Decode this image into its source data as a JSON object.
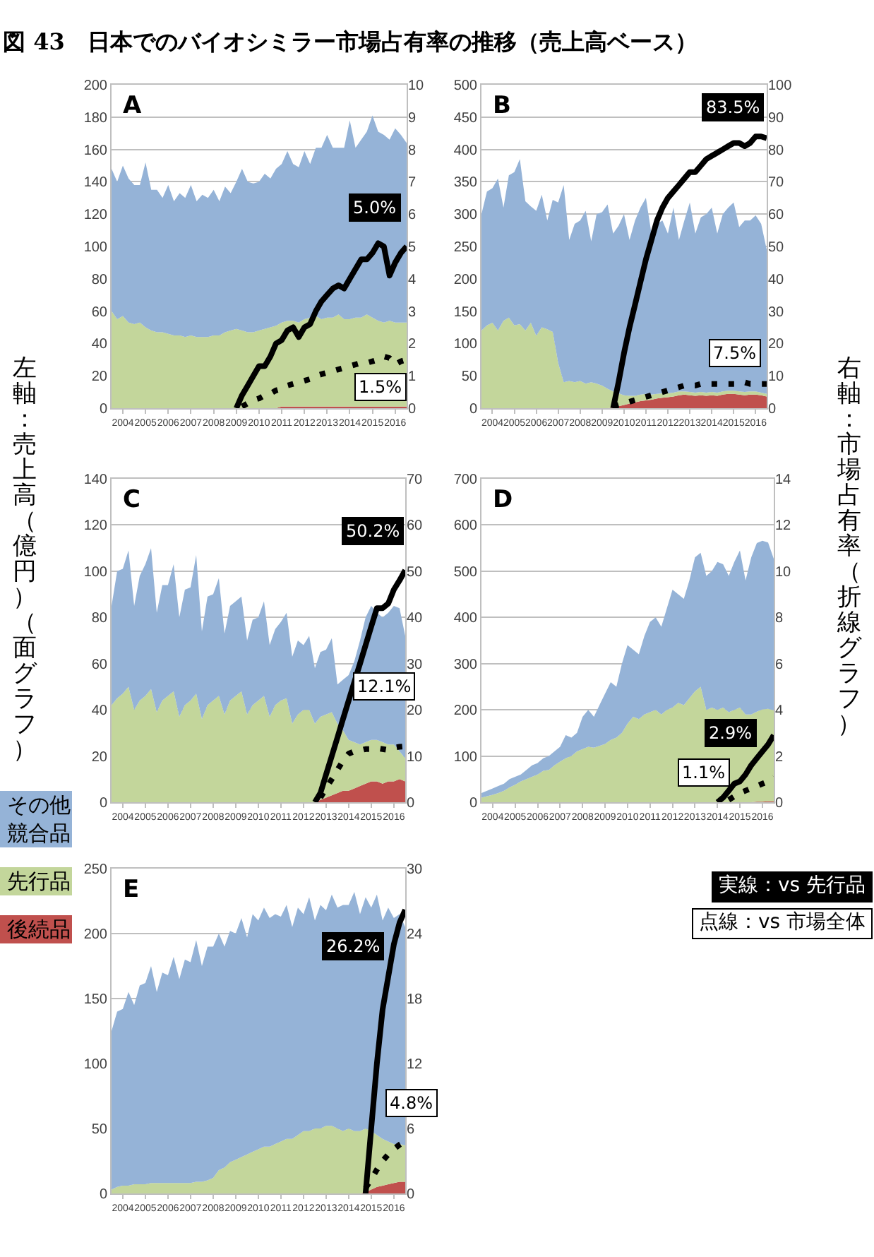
{
  "chart_data": [
    {
      "type": "area",
      "title": "図 43　日本でのバイオシミラー市場占有率の推移（売上高ベース）",
      "ylabel": "左軸：売上高（億円）（面グラフ）",
      "y2label": "右軸：市場占有率（折線グラフ）",
      "stacked": true,
      "grid": "y",
      "legend": "left",
      "annotations": [
        "A",
        "5.0%",
        "1.5%"
      ],
      "x": [
        "2004-01",
        "2004-04",
        "2004-07",
        "2004-10",
        "2005-01",
        "2005-04",
        "2005-07",
        "2005-10",
        "2006-01",
        "2006-04",
        "2006-07",
        "2006-10",
        "2007-01",
        "2007-04",
        "2007-07",
        "2007-10",
        "2008-01",
        "2008-04",
        "2008-07",
        "2008-10",
        "2009-01",
        "2009-04",
        "2009-07",
        "2009-10",
        "2010-01",
        "2010-04",
        "2010-07",
        "2010-10",
        "2011-01",
        "2011-04",
        "2011-07",
        "2011-10",
        "2012-01",
        "2012-04",
        "2012-07",
        "2012-10",
        "2013-01",
        "2013-04",
        "2013-07",
        "2013-10",
        "2014-01",
        "2014-04",
        "2014-07",
        "2014-10",
        "2015-01",
        "2015-04",
        "2015-07",
        "2015-10",
        "2016-01",
        "2016-04",
        "2016-07",
        "2016-10",
        "2017-01"
      ],
      "xlim": [
        "2004-01",
        "2017-01"
      ],
      "xticks": [
        {
          "value": "2004-07",
          "label": "2004"
        },
        {
          "value": "2005-07",
          "label": "2005"
        },
        {
          "value": "2006-07",
          "label": "2006"
        },
        {
          "value": "2007-07",
          "label": "2007"
        },
        {
          "value": "2008-07",
          "label": "2008"
        },
        {
          "value": "2009-07",
          "label": "2009"
        },
        {
          "value": "2010-07",
          "label": "2010"
        },
        {
          "value": "2011-07",
          "label": "2011"
        },
        {
          "value": "2012-07",
          "label": "2012"
        },
        {
          "value": "2013-07",
          "label": "2013"
        },
        {
          "value": "2014-07",
          "label": "2014"
        },
        {
          "value": "2015-07",
          "label": "2015"
        },
        {
          "value": "2016-07",
          "label": "2016"
        }
      ],
      "ylim": [
        0,
        200
      ],
      "yticks": [
        0,
        20,
        40,
        60,
        80,
        100,
        120,
        140,
        160,
        180,
        200
      ],
      "y2lim": [
        0,
        10
      ],
      "y2ticks": [
        0,
        1,
        2,
        3,
        4,
        5,
        6,
        7,
        8,
        9,
        10
      ],
      "series": [
        {
          "name": "後続品",
          "color": "#c0504d",
          "values": [
            0,
            0,
            0,
            0,
            0,
            0,
            0,
            0,
            0,
            0,
            0,
            0,
            0,
            0,
            0,
            0,
            0,
            0,
            0,
            0,
            0,
            0,
            0,
            0,
            0,
            0,
            0,
            0,
            0,
            0,
            1,
            1,
            1,
            1,
            1,
            1,
            1,
            1,
            1,
            1,
            1,
            1,
            1,
            1,
            1,
            1,
            1,
            1,
            1,
            1,
            1,
            1,
            1
          ]
        },
        {
          "name": "先行品",
          "color": "#c3d69b",
          "values": [
            60,
            55,
            57,
            53,
            52,
            53,
            50,
            48,
            47,
            47,
            46,
            45,
            45,
            44,
            45,
            44,
            44,
            44,
            45,
            45,
            47,
            48,
            49,
            48,
            47,
            47,
            48,
            49,
            50,
            51,
            52,
            53,
            53,
            52,
            54,
            55,
            56,
            54,
            55,
            55,
            57,
            54,
            54,
            55,
            55,
            57,
            55,
            53,
            52,
            53,
            52,
            52,
            52
          ]
        },
        {
          "name": "その他競合品",
          "color": "#95b3d7",
          "values": [
            88,
            85,
            93,
            89,
            86,
            85,
            102,
            87,
            88,
            83,
            92,
            83,
            88,
            86,
            93,
            84,
            88,
            86,
            90,
            83,
            90,
            85,
            91,
            100,
            93,
            92,
            92,
            96,
            92,
            97,
            98,
            105,
            97,
            96,
            104,
            95,
            104,
            106,
            113,
            105,
            103,
            106,
            123,
            105,
            110,
            113,
            125,
            117,
            116,
            112,
            120,
            116,
            111
          ]
        },
        {
          "name": "実線：vs 先行品",
          "type": "line",
          "axis": "y2",
          "line_style": "solid",
          "color": "#000000",
          "values": [
            null,
            null,
            null,
            null,
            null,
            null,
            null,
            null,
            null,
            null,
            null,
            null,
            null,
            null,
            null,
            null,
            null,
            null,
            null,
            null,
            null,
            null,
            0,
            0.4,
            0.7,
            1.0,
            1.3,
            1.3,
            1.6,
            2.0,
            2.1,
            2.4,
            2.5,
            2.2,
            2.5,
            2.6,
            3.0,
            3.3,
            3.5,
            3.7,
            3.8,
            3.7,
            4.0,
            4.3,
            4.6,
            4.6,
            4.8,
            5.1,
            5.0,
            4.1,
            4.5,
            4.8,
            5.0
          ]
        },
        {
          "name": "点線：vs 市場全体",
          "type": "line",
          "axis": "y2",
          "line_style": "dotted",
          "color": "#000000",
          "values": [
            null,
            null,
            null,
            null,
            null,
            null,
            null,
            null,
            null,
            null,
            null,
            null,
            null,
            null,
            null,
            null,
            null,
            null,
            null,
            null,
            null,
            null,
            null,
            0.05,
            0.15,
            0.25,
            0.3,
            0.4,
            0.45,
            0.55,
            0.6,
            0.7,
            0.75,
            0.8,
            0.85,
            0.9,
            1.0,
            1.05,
            1.1,
            1.15,
            1.2,
            1.25,
            1.3,
            1.35,
            1.4,
            1.4,
            1.45,
            1.5,
            1.6,
            1.55,
            1.35,
            1.45,
            1.5
          ]
        }
      ]
    },
    {
      "type": "area",
      "stacked": true,
      "grid": "y",
      "annotations": [
        "B",
        "83.5%",
        "7.5%"
      ],
      "x": [
        "2004-01",
        "2004-04",
        "2004-07",
        "2004-10",
        "2005-01",
        "2005-04",
        "2005-07",
        "2005-10",
        "2006-01",
        "2006-04",
        "2006-07",
        "2006-10",
        "2007-01",
        "2007-04",
        "2007-07",
        "2007-10",
        "2008-01",
        "2008-04",
        "2008-07",
        "2008-10",
        "2009-01",
        "2009-04",
        "2009-07",
        "2009-10",
        "2010-01",
        "2010-04",
        "2010-07",
        "2010-10",
        "2011-01",
        "2011-04",
        "2011-07",
        "2011-10",
        "2012-01",
        "2012-04",
        "2012-07",
        "2012-10",
        "2013-01",
        "2013-04",
        "2013-07",
        "2013-10",
        "2014-01",
        "2014-04",
        "2014-07",
        "2014-10",
        "2015-01",
        "2015-04",
        "2015-07",
        "2015-10",
        "2016-01",
        "2016-04",
        "2016-07",
        "2016-10",
        "2017-01"
      ],
      "xlim": [
        "2004-01",
        "2017-01"
      ],
      "xticks": [
        {
          "value": "2004-07",
          "label": "2004"
        },
        {
          "value": "2005-07",
          "label": "2005"
        },
        {
          "value": "2006-07",
          "label": "2006"
        },
        {
          "value": "2007-07",
          "label": "2007"
        },
        {
          "value": "2008-07",
          "label": "2008"
        },
        {
          "value": "2009-07",
          "label": "2009"
        },
        {
          "value": "2010-07",
          "label": "2010"
        },
        {
          "value": "2011-07",
          "label": "2011"
        },
        {
          "value": "2012-07",
          "label": "2012"
        },
        {
          "value": "2013-07",
          "label": "2013"
        },
        {
          "value": "2014-07",
          "label": "2014"
        },
        {
          "value": "2015-07",
          "label": "2015"
        },
        {
          "value": "2016-07",
          "label": "2016"
        }
      ],
      "ylim": [
        0,
        500
      ],
      "yticks": [
        0,
        50,
        100,
        150,
        200,
        250,
        300,
        350,
        400,
        450,
        500
      ],
      "y2lim": [
        0,
        100
      ],
      "y2ticks": [
        0,
        10,
        20,
        30,
        40,
        50,
        60,
        70,
        80,
        90,
        100
      ],
      "series": [
        {
          "color": "#c0504d",
          "values": [
            0,
            0,
            0,
            0,
            0,
            0,
            0,
            0,
            0,
            0,
            0,
            0,
            0,
            0,
            0,
            0,
            0,
            0,
            0,
            0,
            0,
            0,
            0,
            0,
            1,
            3,
            5,
            7,
            9,
            11,
            12,
            13,
            15,
            16,
            17,
            18,
            20,
            21,
            20,
            19,
            20,
            19,
            20,
            19,
            21,
            22,
            22,
            21,
            20,
            21,
            21,
            20,
            18
          ]
        },
        {
          "color": "#c3d69b",
          "values": [
            120,
            128,
            132,
            120,
            135,
            140,
            128,
            130,
            120,
            132,
            112,
            125,
            122,
            118,
            70,
            40,
            42,
            40,
            42,
            38,
            40,
            38,
            35,
            30,
            25,
            20,
            15,
            12,
            10,
            10,
            10,
            8,
            7,
            7,
            6,
            6,
            6,
            5,
            5,
            5,
            5,
            5,
            5,
            5,
            5,
            5,
            5,
            5,
            5,
            5,
            5,
            4,
            4
          ]
        },
        {
          "color": "#95b3d7",
          "values": [
            180,
            207,
            208,
            235,
            175,
            220,
            237,
            255,
            200,
            180,
            193,
            205,
            168,
            204,
            248,
            305,
            218,
            245,
            248,
            267,
            218,
            262,
            268,
            285,
            244,
            259,
            280,
            241,
            271,
            289,
            303,
            249,
            263,
            267,
            247,
            286,
            234,
            264,
            293,
            246,
            270,
            276,
            285,
            246,
            274,
            283,
            291,
            254,
            265,
            264,
            272,
            261,
            223
          ]
        },
        {
          "type": "line",
          "axis": "y2",
          "line_style": "solid",
          "color": "#000000",
          "values": [
            null,
            null,
            null,
            null,
            null,
            null,
            null,
            null,
            null,
            null,
            null,
            null,
            null,
            null,
            null,
            null,
            null,
            null,
            null,
            null,
            null,
            null,
            null,
            null,
            0,
            8,
            17,
            25,
            32,
            39,
            46,
            52,
            58,
            62,
            65,
            67,
            69,
            71,
            73,
            73,
            75,
            77,
            78,
            79,
            80,
            81,
            82,
            82,
            81,
            82,
            84,
            84,
            83.5
          ]
        },
        {
          "type": "line",
          "axis": "y2",
          "line_style": "dotted",
          "color": "#000000",
          "values": [
            null,
            null,
            null,
            null,
            null,
            null,
            null,
            null,
            null,
            null,
            null,
            null,
            null,
            null,
            null,
            null,
            null,
            null,
            null,
            null,
            null,
            null,
            null,
            null,
            0.5,
            1,
            1.5,
            2,
            2.5,
            3,
            3.5,
            4,
            4.5,
            5,
            5.5,
            6,
            6.5,
            7,
            7,
            7,
            7.5,
            7.5,
            7.5,
            7.5,
            7.5,
            7.5,
            7.5,
            7.5,
            8,
            7.5,
            7.5,
            7.5,
            7.5
          ]
        }
      ]
    },
    {
      "type": "area",
      "stacked": true,
      "grid": "y",
      "annotations": [
        "C",
        "50.2%",
        "12.1%"
      ],
      "x": [
        "2004-01",
        "2004-04",
        "2004-07",
        "2004-10",
        "2005-01",
        "2005-04",
        "2005-07",
        "2005-10",
        "2006-01",
        "2006-04",
        "2006-07",
        "2006-10",
        "2007-01",
        "2007-04",
        "2007-07",
        "2007-10",
        "2008-01",
        "2008-04",
        "2008-07",
        "2008-10",
        "2009-01",
        "2009-04",
        "2009-07",
        "2009-10",
        "2010-01",
        "2010-04",
        "2010-07",
        "2010-10",
        "2011-01",
        "2011-04",
        "2011-07",
        "2011-10",
        "2012-01",
        "2012-04",
        "2012-07",
        "2012-10",
        "2013-01",
        "2013-04",
        "2013-07",
        "2013-10",
        "2014-01",
        "2014-04",
        "2014-07",
        "2014-10",
        "2015-01",
        "2015-04",
        "2015-07",
        "2015-10",
        "2016-01",
        "2016-04",
        "2016-07",
        "2016-10",
        "2017-01"
      ],
      "xlim": [
        "2004-01",
        "2017-01"
      ],
      "xticks": [
        {
          "value": "2004-07",
          "label": "2004"
        },
        {
          "value": "2005-07",
          "label": "2005"
        },
        {
          "value": "2006-07",
          "label": "2006"
        },
        {
          "value": "2007-07",
          "label": "2007"
        },
        {
          "value": "2008-07",
          "label": "2008"
        },
        {
          "value": "2009-07",
          "label": "2009"
        },
        {
          "value": "2010-07",
          "label": "2010"
        },
        {
          "value": "2011-07",
          "label": "2011"
        },
        {
          "value": "2012-07",
          "label": "2012"
        },
        {
          "value": "2013-07",
          "label": "2013"
        },
        {
          "value": "2014-07",
          "label": "2014"
        },
        {
          "value": "2015-07",
          "label": "2015"
        },
        {
          "value": "2016-07",
          "label": "2016"
        }
      ],
      "ylim": [
        0,
        140
      ],
      "yticks": [
        0,
        20,
        40,
        60,
        80,
        100,
        120,
        140
      ],
      "y2lim": [
        0,
        70
      ],
      "y2ticks": [
        0,
        10,
        20,
        30,
        40,
        50,
        60,
        70
      ],
      "series": [
        {
          "color": "#c0504d",
          "values": [
            0,
            0,
            0,
            0,
            0,
            0,
            0,
            0,
            0,
            0,
            0,
            0,
            0,
            0,
            0,
            0,
            0,
            0,
            0,
            0,
            0,
            0,
            0,
            0,
            0,
            0,
            0,
            0,
            0,
            0,
            0,
            0,
            0,
            0,
            0,
            0,
            0,
            1,
            2,
            3,
            4,
            5,
            5,
            6,
            7,
            8,
            9,
            9,
            8,
            9,
            9,
            10,
            9
          ]
        },
        {
          "color": "#c3d69b",
          "values": [
            42,
            45,
            47,
            50,
            40,
            44,
            46,
            49,
            39,
            44,
            46,
            48,
            37,
            42,
            44,
            47,
            36,
            42,
            44,
            46,
            38,
            44,
            46,
            48,
            38,
            42,
            44,
            46,
            37,
            42,
            44,
            45,
            34,
            38,
            40,
            40,
            34,
            36,
            36,
            36,
            30,
            26,
            22,
            20,
            18,
            18,
            18,
            18,
            18,
            16,
            16,
            12,
            10
          ]
        },
        {
          "color": "#95b3d7",
          "values": [
            43,
            55,
            54,
            59,
            45,
            54,
            57,
            61,
            43,
            50,
            48,
            55,
            43,
            50,
            49,
            60,
            38,
            47,
            46,
            51,
            35,
            41,
            41,
            41,
            32,
            37,
            36,
            41,
            31,
            33,
            34,
            37,
            29,
            32,
            28,
            32,
            24,
            28,
            28,
            32,
            17,
            22,
            28,
            35,
            45,
            54,
            58,
            55,
            54,
            57,
            60,
            62,
            53
          ]
        },
        {
          "type": "line",
          "axis": "y2",
          "line_style": "solid",
          "color": "#000000",
          "values": [
            null,
            null,
            null,
            null,
            null,
            null,
            null,
            null,
            null,
            null,
            null,
            null,
            null,
            null,
            null,
            null,
            null,
            null,
            null,
            null,
            null,
            null,
            null,
            null,
            null,
            null,
            null,
            null,
            null,
            null,
            null,
            null,
            null,
            null,
            null,
            null,
            0,
            2,
            6,
            10,
            14,
            18,
            22,
            26,
            30,
            34,
            38,
            42,
            42,
            43,
            46,
            48,
            50.2
          ]
        },
        {
          "type": "line",
          "axis": "y2",
          "line_style": "dotted",
          "color": "#000000",
          "values": [
            null,
            null,
            null,
            null,
            null,
            null,
            null,
            null,
            null,
            null,
            null,
            null,
            null,
            null,
            null,
            null,
            null,
            null,
            null,
            null,
            null,
            null,
            null,
            null,
            null,
            null,
            null,
            null,
            null,
            null,
            null,
            null,
            null,
            null,
            null,
            null,
            null,
            1,
            3,
            5,
            7,
            9,
            10.5,
            11,
            11.2,
            11.5,
            11.5,
            11.7,
            11.5,
            11.3,
            11.8,
            12,
            12.1
          ]
        }
      ]
    },
    {
      "type": "area",
      "stacked": true,
      "grid": "y",
      "annotations": [
        "D",
        "2.9%",
        "1.1%"
      ],
      "x": [
        "2004-01",
        "2004-04",
        "2004-07",
        "2004-10",
        "2005-01",
        "2005-04",
        "2005-07",
        "2005-10",
        "2006-01",
        "2006-04",
        "2006-07",
        "2006-10",
        "2007-01",
        "2007-04",
        "2007-07",
        "2007-10",
        "2008-01",
        "2008-04",
        "2008-07",
        "2008-10",
        "2009-01",
        "2009-04",
        "2009-07",
        "2009-10",
        "2010-01",
        "2010-04",
        "2010-07",
        "2010-10",
        "2011-01",
        "2011-04",
        "2011-07",
        "2011-10",
        "2012-01",
        "2012-04",
        "2012-07",
        "2012-10",
        "2013-01",
        "2013-04",
        "2013-07",
        "2013-10",
        "2014-01",
        "2014-04",
        "2014-07",
        "2014-10",
        "2015-01",
        "2015-04",
        "2015-07",
        "2015-10",
        "2016-01",
        "2016-04",
        "2016-07",
        "2016-10",
        "2017-01"
      ],
      "xlim": [
        "2004-01",
        "2017-01"
      ],
      "xticks": [
        {
          "value": "2004-07",
          "label": "2004"
        },
        {
          "value": "2005-07",
          "label": "2005"
        },
        {
          "value": "2006-07",
          "label": "2006"
        },
        {
          "value": "2007-07",
          "label": "2007"
        },
        {
          "value": "2008-07",
          "label": "2008"
        },
        {
          "value": "2009-07",
          "label": "2009"
        },
        {
          "value": "2010-07",
          "label": "2010"
        },
        {
          "value": "2011-07",
          "label": "2011"
        },
        {
          "value": "2012-07",
          "label": "2012"
        },
        {
          "value": "2013-07",
          "label": "2013"
        },
        {
          "value": "2014-07",
          "label": "2014"
        },
        {
          "value": "2015-07",
          "label": "2015"
        },
        {
          "value": "2016-07",
          "label": "2016"
        }
      ],
      "ylim": [
        0,
        700
      ],
      "yticks": [
        0,
        100,
        200,
        300,
        400,
        500,
        600,
        700
      ],
      "y2lim": [
        0,
        14
      ],
      "y2ticks": [
        0,
        2,
        4,
        6,
        8,
        10,
        12,
        14
      ],
      "series": [
        {
          "color": "#c0504d",
          "values": [
            0,
            0,
            0,
            0,
            0,
            0,
            0,
            0,
            0,
            0,
            0,
            0,
            0,
            0,
            0,
            0,
            0,
            0,
            0,
            0,
            0,
            0,
            0,
            0,
            0,
            0,
            0,
            0,
            0,
            0,
            0,
            0,
            0,
            0,
            0,
            0,
            0,
            0,
            0,
            0,
            0,
            0,
            0,
            0,
            0,
            0,
            0,
            0,
            0,
            1,
            1,
            2,
            2
          ]
        },
        {
          "color": "#c3d69b",
          "values": [
            10,
            13,
            16,
            20,
            25,
            32,
            38,
            45,
            50,
            55,
            60,
            68,
            70,
            80,
            88,
            95,
            100,
            110,
            115,
            120,
            118,
            122,
            126,
            135,
            140,
            150,
            170,
            185,
            180,
            190,
            195,
            200,
            190,
            200,
            205,
            215,
            210,
            225,
            240,
            250,
            200,
            205,
            200,
            205,
            195,
            200,
            205,
            190,
            190,
            195,
            200,
            200,
            197
          ]
        },
        {
          "color": "#95b3d7",
          "values": [
            10,
            12,
            14,
            15,
            15,
            18,
            17,
            15,
            20,
            25,
            25,
            27,
            30,
            30,
            32,
            50,
            40,
            40,
            70,
            80,
            67,
            88,
            109,
            125,
            110,
            150,
            170,
            145,
            140,
            170,
            195,
            200,
            190,
            220,
            255,
            235,
            230,
            255,
            290,
            290,
            290,
            295,
            320,
            310,
            295,
            320,
            340,
            290,
            340,
            365,
            365,
            360,
            328
          ]
        },
        {
          "type": "line",
          "axis": "y2",
          "line_style": "solid",
          "color": "#000000",
          "values": [
            null,
            null,
            null,
            null,
            null,
            null,
            null,
            null,
            null,
            null,
            null,
            null,
            null,
            null,
            null,
            null,
            null,
            null,
            null,
            null,
            null,
            null,
            null,
            null,
            null,
            null,
            null,
            null,
            null,
            null,
            null,
            null,
            null,
            null,
            null,
            null,
            null,
            null,
            null,
            null,
            null,
            null,
            0,
            0.2,
            0.5,
            0.8,
            0.9,
            1.2,
            1.6,
            1.9,
            2.2,
            2.5,
            2.9
          ]
        },
        {
          "type": "line",
          "axis": "y2",
          "line_style": "dotted",
          "color": "#000000",
          "values": [
            null,
            null,
            null,
            null,
            null,
            null,
            null,
            null,
            null,
            null,
            null,
            null,
            null,
            null,
            null,
            null,
            null,
            null,
            null,
            null,
            null,
            null,
            null,
            null,
            null,
            null,
            null,
            null,
            null,
            null,
            null,
            null,
            null,
            null,
            null,
            null,
            null,
            null,
            null,
            null,
            null,
            null,
            null,
            null,
            0.1,
            0.25,
            0.4,
            0.5,
            0.6,
            0.7,
            0.8,
            0.9,
            1.1
          ]
        }
      ]
    },
    {
      "type": "area",
      "stacked": true,
      "grid": "y",
      "annotations": [
        "E",
        "26.2%",
        "4.8%"
      ],
      "x": [
        "2004-01",
        "2004-04",
        "2004-07",
        "2004-10",
        "2005-01",
        "2005-04",
        "2005-07",
        "2005-10",
        "2006-01",
        "2006-04",
        "2006-07",
        "2006-10",
        "2007-01",
        "2007-04",
        "2007-07",
        "2007-10",
        "2008-01",
        "2008-04",
        "2008-07",
        "2008-10",
        "2009-01",
        "2009-04",
        "2009-07",
        "2009-10",
        "2010-01",
        "2010-04",
        "2010-07",
        "2010-10",
        "2011-01",
        "2011-04",
        "2011-07",
        "2011-10",
        "2012-01",
        "2012-04",
        "2012-07",
        "2012-10",
        "2013-01",
        "2013-04",
        "2013-07",
        "2013-10",
        "2014-01",
        "2014-04",
        "2014-07",
        "2014-10",
        "2015-01",
        "2015-04",
        "2015-07",
        "2015-10",
        "2016-01",
        "2016-04",
        "2016-07",
        "2016-10",
        "2017-01"
      ],
      "xlim": [
        "2004-01",
        "2017-01"
      ],
      "xticks": [
        {
          "value": "2004-07",
          "label": "2004"
        },
        {
          "value": "2005-07",
          "label": "2005"
        },
        {
          "value": "2006-07",
          "label": "2006"
        },
        {
          "value": "2007-07",
          "label": "2007"
        },
        {
          "value": "2008-07",
          "label": "2008"
        },
        {
          "value": "2009-07",
          "label": "2009"
        },
        {
          "value": "2010-07",
          "label": "2010"
        },
        {
          "value": "2011-07",
          "label": "2011"
        },
        {
          "value": "2012-07",
          "label": "2012"
        },
        {
          "value": "2013-07",
          "label": "2013"
        },
        {
          "value": "2014-07",
          "label": "2014"
        },
        {
          "value": "2015-07",
          "label": "2015"
        },
        {
          "value": "2016-07",
          "label": "2016"
        }
      ],
      "ylim": [
        0,
        250
      ],
      "yticks": [
        0,
        50,
        100,
        150,
        200,
        250
      ],
      "y2lim": [
        0,
        30
      ],
      "y2ticks": [
        0,
        6,
        12,
        18,
        24,
        30
      ],
      "series": [
        {
          "color": "#c0504d",
          "values": [
            0,
            0,
            0,
            0,
            0,
            0,
            0,
            0,
            0,
            0,
            0,
            0,
            0,
            0,
            0,
            0,
            0,
            0,
            0,
            0,
            0,
            0,
            0,
            0,
            0,
            0,
            0,
            0,
            0,
            0,
            0,
            0,
            0,
            0,
            0,
            0,
            0,
            0,
            0,
            0,
            0,
            0,
            0,
            0,
            0,
            1,
            3,
            5,
            6,
            7,
            8,
            9,
            9
          ]
        },
        {
          "color": "#c3d69b",
          "values": [
            3,
            5,
            6,
            6,
            7,
            7,
            7,
            8,
            8,
            8,
            8,
            8,
            8,
            8,
            8,
            9,
            9,
            10,
            12,
            18,
            20,
            24,
            26,
            28,
            30,
            32,
            34,
            36,
            36,
            38,
            40,
            42,
            42,
            45,
            48,
            48,
            50,
            50,
            52,
            52,
            50,
            48,
            50,
            48,
            48,
            49,
            45,
            40,
            36,
            33,
            30,
            29,
            28
          ]
        },
        {
          "color": "#95b3d7",
          "values": [
            122,
            135,
            136,
            149,
            138,
            153,
            155,
            167,
            147,
            162,
            160,
            174,
            157,
            172,
            170,
            186,
            166,
            180,
            178,
            182,
            170,
            178,
            174,
            184,
            167,
            183,
            176,
            184,
            176,
            177,
            173,
            180,
            163,
            175,
            167,
            180,
            160,
            172,
            166,
            178,
            170,
            174,
            172,
            184,
            167,
            178,
            172,
            185,
            168,
            180,
            174,
            177,
            168
          ]
        },
        {
          "type": "line",
          "axis": "y2",
          "line_style": "solid",
          "color": "#000000",
          "values": [
            null,
            null,
            null,
            null,
            null,
            null,
            null,
            null,
            null,
            null,
            null,
            null,
            null,
            null,
            null,
            null,
            null,
            null,
            null,
            null,
            null,
            null,
            null,
            null,
            null,
            null,
            null,
            null,
            null,
            null,
            null,
            null,
            null,
            null,
            null,
            null,
            null,
            null,
            null,
            null,
            null,
            null,
            null,
            null,
            null,
            0,
            6,
            12,
            17,
            20,
            23,
            25,
            26.2
          ]
        },
        {
          "type": "line",
          "axis": "y2",
          "line_style": "dotted",
          "color": "#000000",
          "values": [
            null,
            null,
            null,
            null,
            null,
            null,
            null,
            null,
            null,
            null,
            null,
            null,
            null,
            null,
            null,
            null,
            null,
            null,
            null,
            null,
            null,
            null,
            null,
            null,
            null,
            null,
            null,
            null,
            null,
            null,
            null,
            null,
            null,
            null,
            null,
            null,
            null,
            null,
            null,
            null,
            null,
            null,
            null,
            null,
            null,
            0.5,
            1.3,
            2.2,
            3.0,
            3.6,
            4.1,
            4.5,
            4.8
          ]
        }
      ]
    }
  ]
}
